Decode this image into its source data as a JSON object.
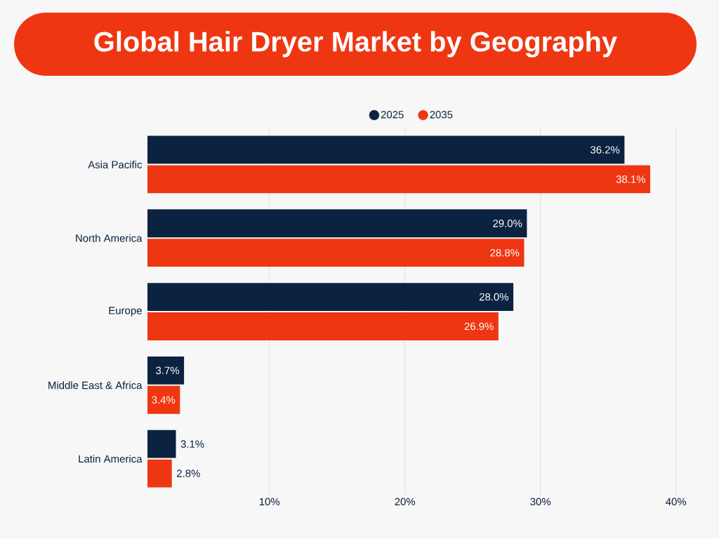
{
  "chart_data": {
    "type": "bar",
    "orientation": "horizontal",
    "title": "Global Hair Dryer Market by Geography",
    "categories": [
      "Asia Pacific",
      "North America",
      "Europe",
      "Middle East & Africa",
      "Latin America"
    ],
    "series": [
      {
        "name": "2025",
        "color": "#0b2240",
        "values": [
          36.2,
          29.0,
          28.0,
          3.7,
          3.1
        ],
        "value_labels": [
          "36.2%",
          "29.0%",
          "28.0%",
          "3.7%",
          "3.1%"
        ]
      },
      {
        "name": "2035",
        "color": "#ee3712",
        "values": [
          38.1,
          28.8,
          26.9,
          3.4,
          2.8
        ],
        "value_labels": [
          "38.1%",
          "28.8%",
          "26.9%",
          "3.4%",
          "2.8%"
        ]
      }
    ],
    "xlim": [
      1,
      40
    ],
    "xticks": [
      {
        "value": 10,
        "label": "10%"
      },
      {
        "value": 20,
        "label": "20%"
      },
      {
        "value": 30,
        "label": "30%"
      },
      {
        "value": 40,
        "label": "40%"
      }
    ],
    "grid": "x",
    "legend": "top"
  }
}
